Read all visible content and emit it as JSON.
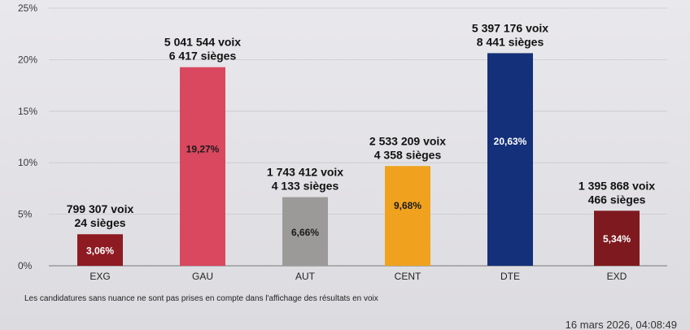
{
  "chart_data": {
    "type": "bar",
    "title": "",
    "xlabel": "",
    "ylabel": "",
    "ylim": [
      0,
      25
    ],
    "yticks": [
      0,
      5,
      10,
      15,
      20,
      25
    ],
    "ytick_labels": [
      "0%",
      "5%",
      "10%",
      "15%",
      "20%",
      "25%"
    ],
    "grid": true,
    "categories": [
      "EXG",
      "GAU",
      "AUT",
      "CENT",
      "DTE",
      "EXD"
    ],
    "values": [
      3.06,
      19.27,
      6.66,
      9.68,
      20.63,
      5.34
    ],
    "value_labels": [
      "3,06%",
      "19,27%",
      "6,66%",
      "9,68%",
      "20,63%",
      "5,34%"
    ],
    "votes": [
      "799 307 voix",
      "5 041 544 voix",
      "1 743 412 voix",
      "2 533 209 voix",
      "5 397 176 voix",
      "1 395 868 voix"
    ],
    "seats": [
      "24 sièges",
      "6 417 sièges",
      "4 133 sièges",
      "4 358 sièges",
      "8 441 sièges",
      "466 sièges"
    ],
    "colors": [
      "#8e1b22",
      "#d9485f",
      "#9c9a99",
      "#f0a21e",
      "#14307a",
      "#7e1a1f"
    ],
    "value_label_colors": [
      "#ffffff",
      "#1a1a1a",
      "#1a1a1a",
      "#1a1a1a",
      "#ffffff",
      "#ffffff"
    ]
  },
  "footnote": "Les candidatures sans nuance ne sont pas prises en compte dans l'affichage des résultats en voix",
  "timestamp": "16 mars 2026, 04:08:49"
}
